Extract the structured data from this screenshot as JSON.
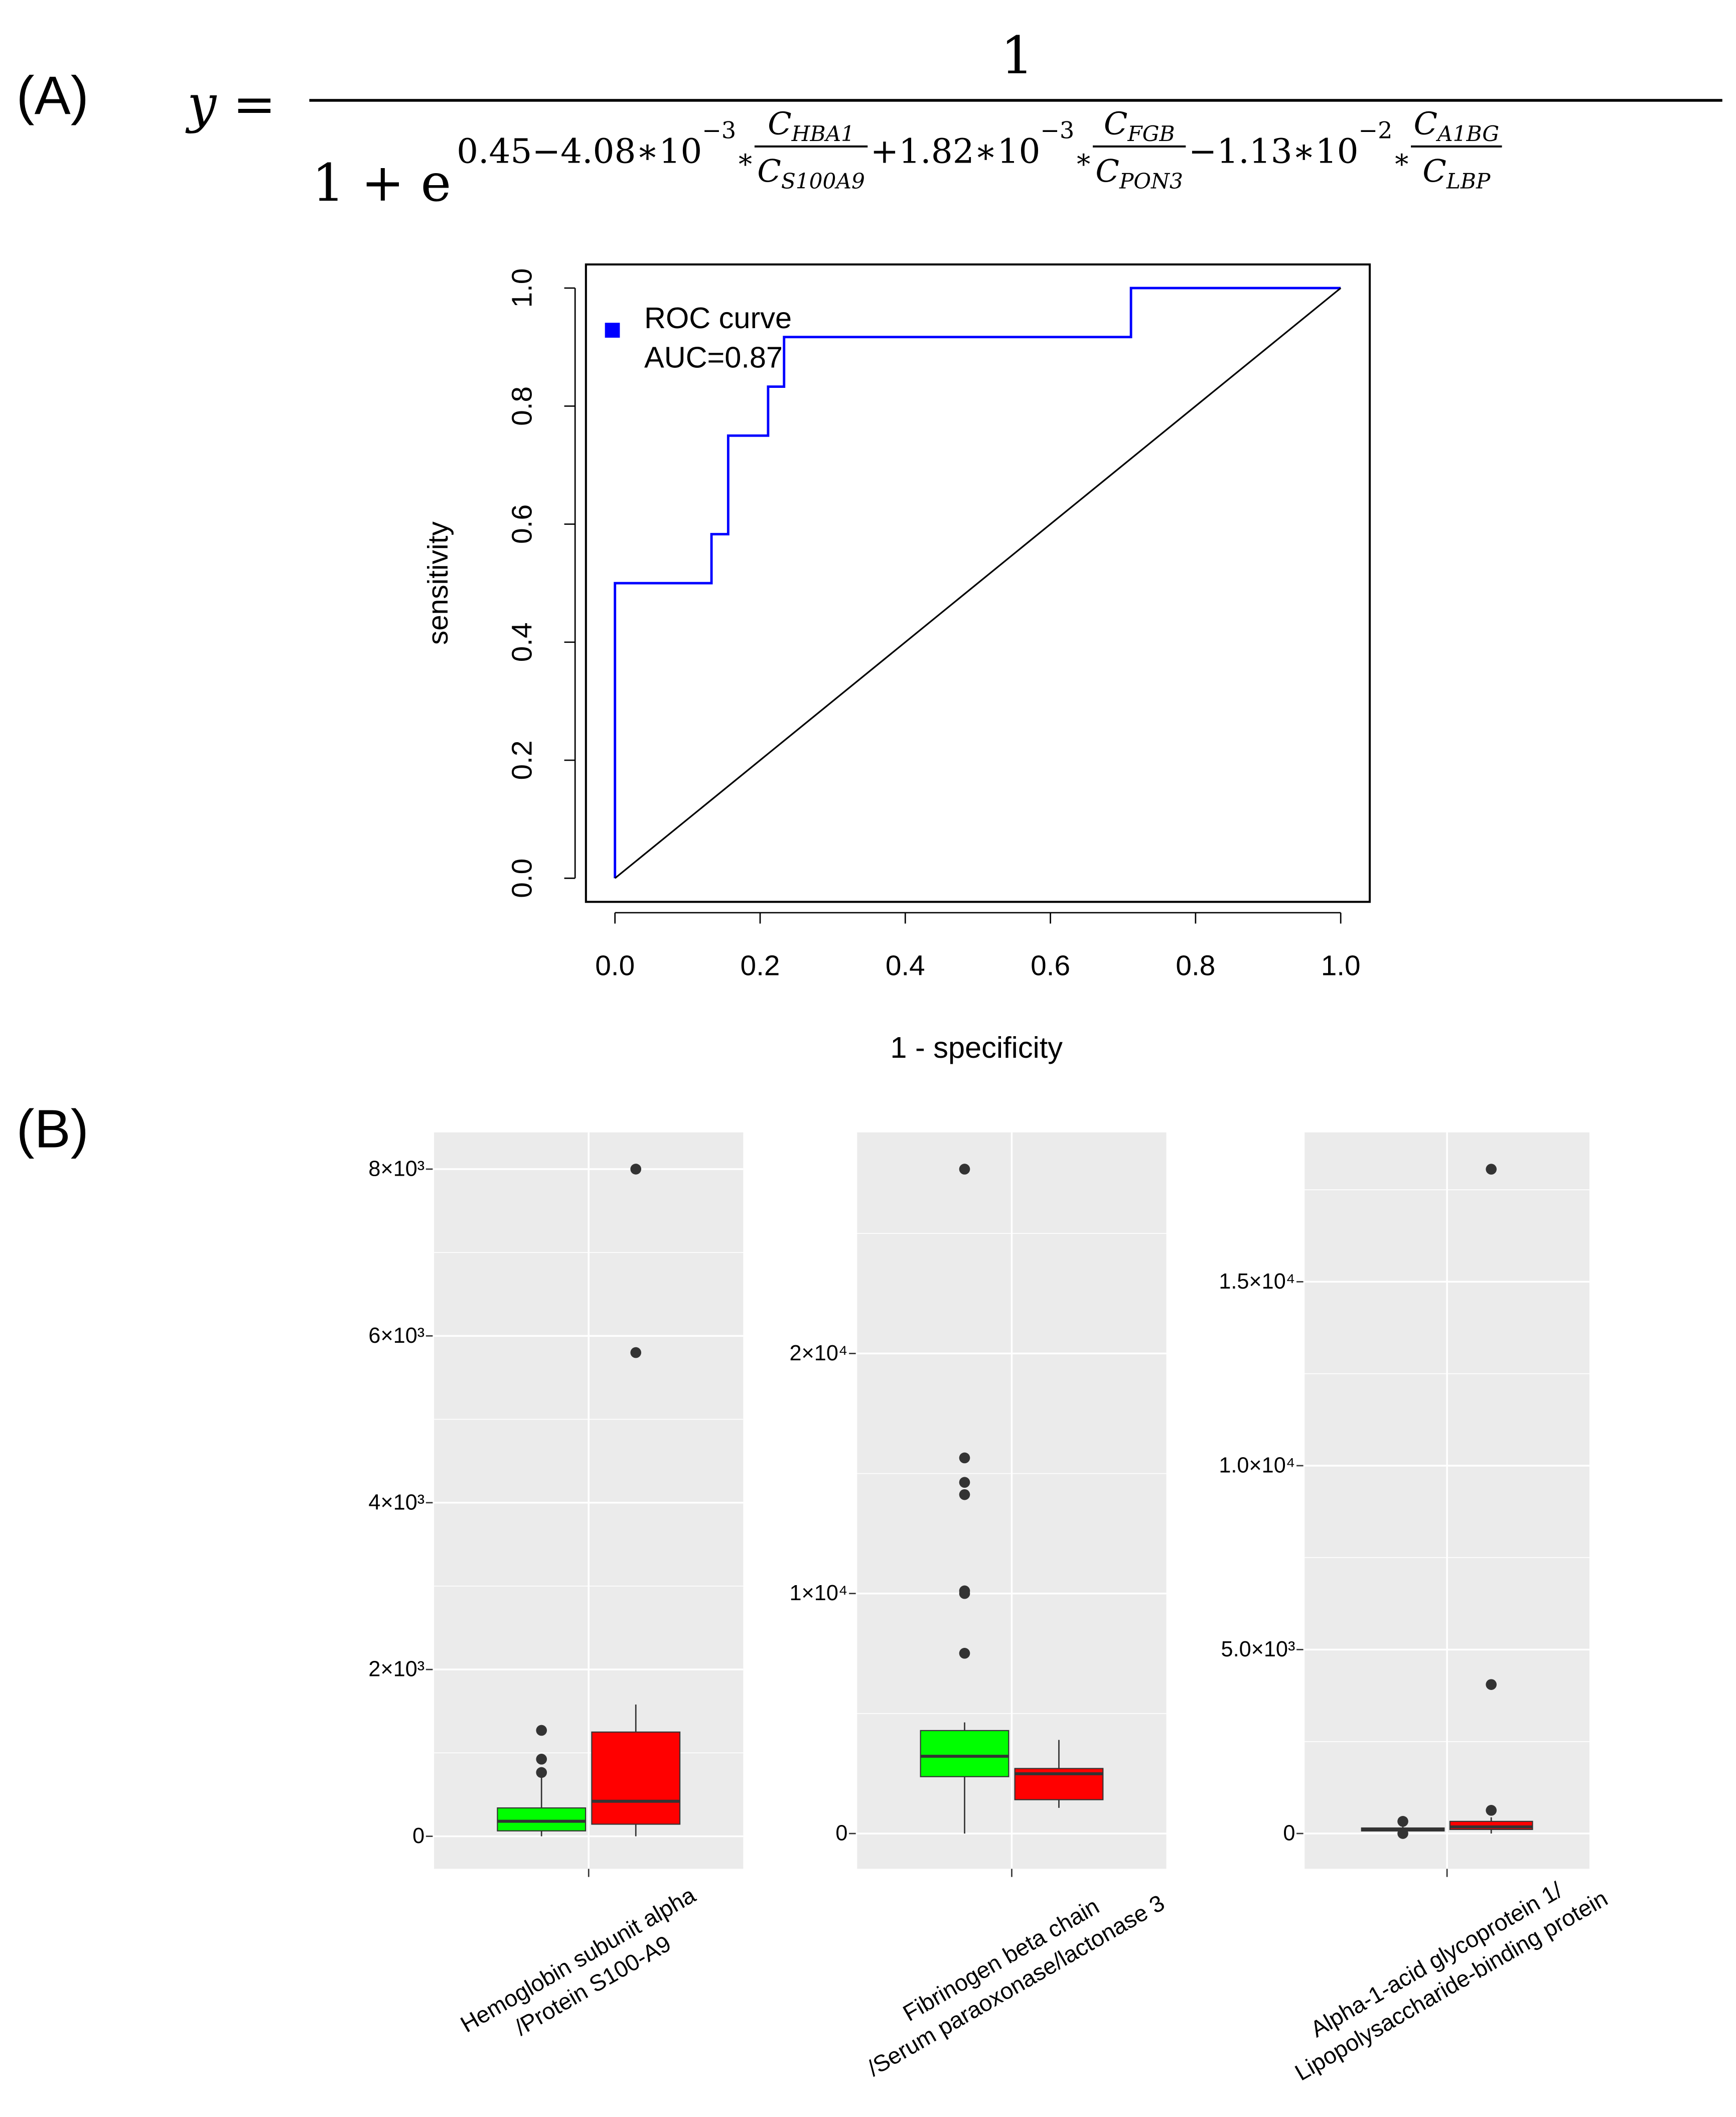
{
  "panel_labels": [
    "(A)",
    "(B)"
  ],
  "formula": {
    "lhs": "y =",
    "numerator": "1",
    "denominator": "1 + e",
    "terms": [
      {
        "prefix": "0.45−4.08∗10",
        "power": "−3",
        "times": "∗",
        "num": "C",
        "num_sub": "HBA1",
        "den": "C",
        "den_sub": "S100A9"
      },
      {
        "prefix": "+1.82∗10",
        "power": "−3",
        "times": "∗",
        "num": "C",
        "num_sub": "FGB",
        "den": "C",
        "den_sub": "PON3"
      },
      {
        "prefix": "−1.13∗10",
        "power": "−2",
        "times": "∗",
        "num": "C",
        "num_sub": "A1BG",
        "den": "C",
        "den_sub": "LBP"
      }
    ]
  },
  "chart_data": [
    {
      "type": "line",
      "xlabel": "1 - specificity",
      "ylabel": "sensitivity",
      "xlim": [
        -0.04,
        1.04
      ],
      "ylim": [
        -0.04,
        1.04
      ],
      "xticks": [
        {
          "value": 0,
          "label": "0.0"
        },
        0.2,
        0.4,
        0.6,
        0.8,
        {
          "value": 1,
          "label": "1.0"
        }
      ],
      "yticks": [
        {
          "value": 0,
          "label": "0.0"
        },
        0.2,
        0.4,
        0.6,
        0.8,
        {
          "value": 1,
          "label": "1.0"
        }
      ],
      "legend": "top-left",
      "annotation": "AUC=0.87",
      "series": [
        {
          "name": "ROC curve",
          "color": "#0000ff",
          "x": [
            0,
            0,
            0.133,
            0.133,
            0.156,
            0.156,
            0.211,
            0.211,
            0.233,
            0.233,
            0.711,
            0.711,
            1
          ],
          "y": [
            0,
            0.5,
            0.5,
            0.583,
            0.583,
            0.75,
            0.75,
            0.833,
            0.833,
            0.917,
            0.917,
            1,
            1
          ]
        },
        {
          "color": "#000000",
          "x": [
            0,
            1
          ],
          "y": [
            0,
            1
          ]
        }
      ]
    },
    {
      "type": "box",
      "category_label": [
        "Hemoglobin subunit alpha",
        "/Protein S100-A9"
      ],
      "ylim": [
        -390,
        8440
      ],
      "yticks": [
        0,
        {
          "value": 2000,
          "label": "2×10³"
        },
        {
          "value": 4000,
          "label": "4×10³"
        },
        {
          "value": 6000,
          "label": "6×10³"
        },
        {
          "value": 8000,
          "label": "8×10³"
        }
      ],
      "minor_yticks": [
        1000,
        3000,
        5000,
        7000
      ],
      "grid": true,
      "groups": [
        {
          "color": "#00ff00",
          "whisker_low": 0,
          "q1": 65,
          "median": 180,
          "q3": 340,
          "whisker_high": 750,
          "outliers": [
            1270,
            925,
            765
          ]
        },
        {
          "color": "#ff0000",
          "whisker_low": 0,
          "q1": 145,
          "median": 420,
          "q3": 1250,
          "whisker_high": 1580,
          "outliers": [
            8000,
            5800
          ]
        }
      ]
    },
    {
      "type": "box",
      "category_label": [
        "Fibrinogen beta chain",
        "/Serum paraoxonase/lactonase 3"
      ],
      "ylim": [
        -1470,
        29210
      ],
      "yticks": [
        0,
        {
          "value": 10000,
          "label": "1×10⁴"
        },
        {
          "value": 20000,
          "label": "2×10⁴"
        }
      ],
      "minor_yticks": [
        5000,
        15000,
        25000
      ],
      "grid": true,
      "groups": [
        {
          "color": "#00ff00",
          "whisker_low": 0,
          "q1": 2370,
          "median": 3220,
          "q3": 4290,
          "whisker_high": 4630,
          "outliers": [
            27680,
            15650,
            14630,
            14120,
            10110,
            10000,
            7510
          ]
        },
        {
          "color": "#ff0000",
          "whisker_low": 1070,
          "q1": 1410,
          "median": 2490,
          "q3": 2710,
          "whisker_high": 3900,
          "outliers": []
        }
      ]
    },
    {
      "type": "box",
      "category_label": [
        "Alpha-1-acid glycoprotein 1/",
        "Lipopolysaccharide-binding protein"
      ],
      "ylim": [
        -960,
        19060
      ],
      "yticks": [
        0,
        {
          "value": 5000,
          "label": "5.0×10³"
        },
        {
          "value": 10000,
          "label": "1.0×10⁴"
        },
        {
          "value": 15000,
          "label": "1.5×10⁴"
        }
      ],
      "minor_yticks": [
        2500,
        7500,
        12500,
        17500
      ],
      "grid": true,
      "groups": [
        {
          "color": "#00ff00",
          "whisker_low": 0,
          "q1": 70,
          "median": 110,
          "q3": 150,
          "whisker_high": 220,
          "outliers": [
            330,
            0
          ]
        },
        {
          "color": "#ff0000",
          "whisker_low": 0,
          "q1": 110,
          "median": 180,
          "q3": 330,
          "whisker_high": 440,
          "outliers": [
            18060,
            4050,
            630
          ]
        }
      ]
    }
  ]
}
